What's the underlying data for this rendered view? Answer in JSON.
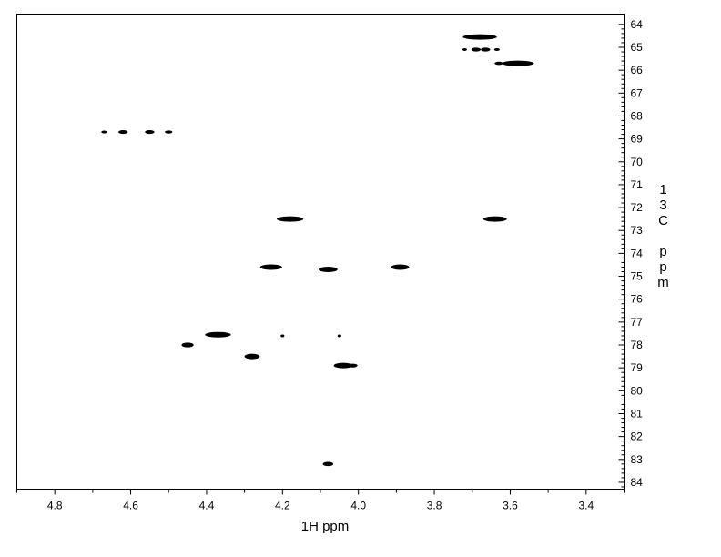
{
  "chart_data": {
    "type": "scatter",
    "subtype": "2D NMR contour map",
    "title": "",
    "xlabel": "1H ppm",
    "ylabel": "13C ppm",
    "xlim": [
      4.9,
      3.3
    ],
    "ylim": [
      63.55,
      84.3
    ],
    "x_reversed": true,
    "y_axis_side": "right",
    "y_reversed": true,
    "grid": false,
    "x_ticks": [
      "4.8",
      "4.6",
      "4.4",
      "4.2",
      "4.0",
      "3.8",
      "3.6",
      "3.4"
    ],
    "y_ticks": [
      "64",
      "65",
      "66",
      "67",
      "68",
      "69",
      "70",
      "71",
      "72",
      "73",
      "74",
      "75",
      "76",
      "77",
      "78",
      "79",
      "80",
      "81",
      "82",
      "83",
      "84"
    ],
    "peak_color": "#000000",
    "peaks": [
      {
        "h": 3.68,
        "c": 64.55,
        "width": 0.09
      },
      {
        "h": 3.655,
        "c": 64.55,
        "width": 0.03
      },
      {
        "h": 3.72,
        "c": 65.1,
        "width": 0.012
      },
      {
        "h": 3.69,
        "c": 65.1,
        "width": 0.025
      },
      {
        "h": 3.665,
        "c": 65.1,
        "width": 0.025
      },
      {
        "h": 3.635,
        "c": 65.1,
        "width": 0.015
      },
      {
        "h": 3.63,
        "c": 65.7,
        "width": 0.022
      },
      {
        "h": 3.58,
        "c": 65.7,
        "width": 0.085
      },
      {
        "h": 4.67,
        "c": 68.7,
        "width": 0.015
      },
      {
        "h": 4.62,
        "c": 68.7,
        "width": 0.025
      },
      {
        "h": 4.55,
        "c": 68.7,
        "width": 0.025
      },
      {
        "h": 4.5,
        "c": 68.7,
        "width": 0.02
      },
      {
        "h": 4.18,
        "c": 72.5,
        "width": 0.07
      },
      {
        "h": 3.64,
        "c": 72.5,
        "width": 0.062
      },
      {
        "h": 4.23,
        "c": 74.6,
        "width": 0.058
      },
      {
        "h": 4.08,
        "c": 74.7,
        "width": 0.05
      },
      {
        "h": 3.89,
        "c": 74.6,
        "width": 0.048
      },
      {
        "h": 4.37,
        "c": 77.55,
        "width": 0.068
      },
      {
        "h": 4.2,
        "c": 77.6,
        "width": 0.01
      },
      {
        "h": 4.05,
        "c": 77.6,
        "width": 0.01
      },
      {
        "h": 4.45,
        "c": 78.0,
        "width": 0.032
      },
      {
        "h": 4.28,
        "c": 78.5,
        "width": 0.04
      },
      {
        "h": 4.04,
        "c": 78.9,
        "width": 0.05
      },
      {
        "h": 4.015,
        "c": 78.9,
        "width": 0.025
      },
      {
        "h": 4.08,
        "c": 83.2,
        "width": 0.028
      }
    ]
  }
}
